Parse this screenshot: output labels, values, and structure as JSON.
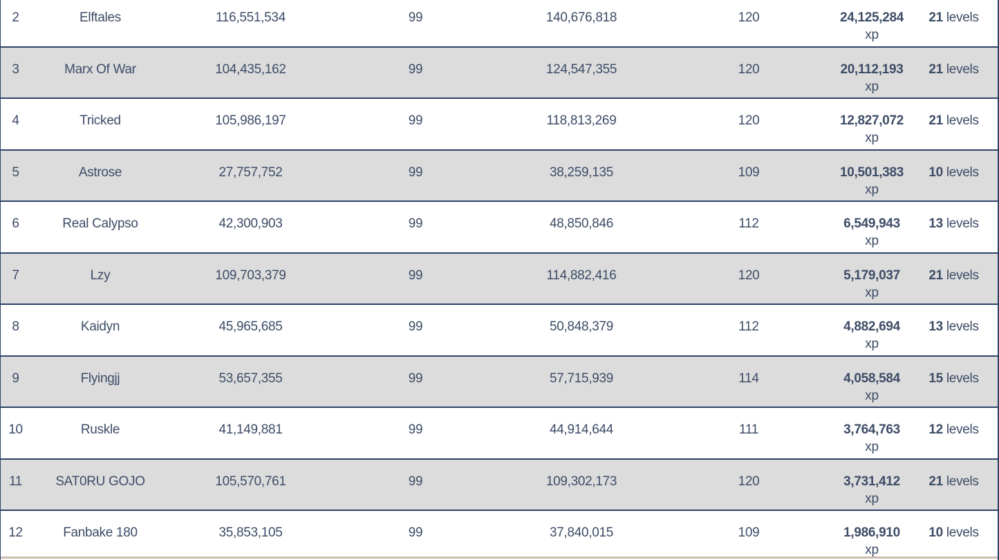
{
  "table": {
    "kind": "competition-leaderboard",
    "visible_rank_range": "2-12"
  },
  "units": {
    "xp": "xp",
    "levels": "levels"
  },
  "colors": {
    "row_separator": "#2d4269",
    "stripe_gray": "#dcdcdc",
    "text": "#3d4c66",
    "bottom_strip": "#cdbcab",
    "row_white": "#ffffff"
  },
  "rows": [
    {
      "rank": "2",
      "player": "Elftales",
      "start_xp": "116,551,534",
      "start_level": "99",
      "end_xp": "140,676,818",
      "end_level": "120",
      "gained_xp": "24,125,284",
      "gained_levels": "21"
    },
    {
      "rank": "3",
      "player": "Marx Of War",
      "start_xp": "104,435,162",
      "start_level": "99",
      "end_xp": "124,547,355",
      "end_level": "120",
      "gained_xp": "20,112,193",
      "gained_levels": "21"
    },
    {
      "rank": "4",
      "player": "Tricked",
      "start_xp": "105,986,197",
      "start_level": "99",
      "end_xp": "118,813,269",
      "end_level": "120",
      "gained_xp": "12,827,072",
      "gained_levels": "21"
    },
    {
      "rank": "5",
      "player": "Astrose",
      "start_xp": "27,757,752",
      "start_level": "99",
      "end_xp": "38,259,135",
      "end_level": "109",
      "gained_xp": "10,501,383",
      "gained_levels": "10"
    },
    {
      "rank": "6",
      "player": "Real Calypso",
      "start_xp": "42,300,903",
      "start_level": "99",
      "end_xp": "48,850,846",
      "end_level": "112",
      "gained_xp": "6,549,943",
      "gained_levels": "13"
    },
    {
      "rank": "7",
      "player": "Lzy",
      "start_xp": "109,703,379",
      "start_level": "99",
      "end_xp": "114,882,416",
      "end_level": "120",
      "gained_xp": "5,179,037",
      "gained_levels": "21"
    },
    {
      "rank": "8",
      "player": "Kaidyn",
      "start_xp": "45,965,685",
      "start_level": "99",
      "end_xp": "50,848,379",
      "end_level": "112",
      "gained_xp": "4,882,694",
      "gained_levels": "13"
    },
    {
      "rank": "9",
      "player": "Flyingjj",
      "start_xp": "53,657,355",
      "start_level": "99",
      "end_xp": "57,715,939",
      "end_level": "114",
      "gained_xp": "4,058,584",
      "gained_levels": "15"
    },
    {
      "rank": "10",
      "player": "Ruskle",
      "start_xp": "41,149,881",
      "start_level": "99",
      "end_xp": "44,914,644",
      "end_level": "111",
      "gained_xp": "3,764,763",
      "gained_levels": "12"
    },
    {
      "rank": "11",
      "player": "SAT0RU GOJO",
      "start_xp": "105,570,761",
      "start_level": "99",
      "end_xp": "109,302,173",
      "end_level": "120",
      "gained_xp": "3,731,412",
      "gained_levels": "21"
    },
    {
      "rank": "12",
      "player": "Fanbake 180",
      "start_xp": "35,853,105",
      "start_level": "99",
      "end_xp": "37,840,015",
      "end_level": "109",
      "gained_xp": "1,986,910",
      "gained_levels": "10"
    }
  ]
}
